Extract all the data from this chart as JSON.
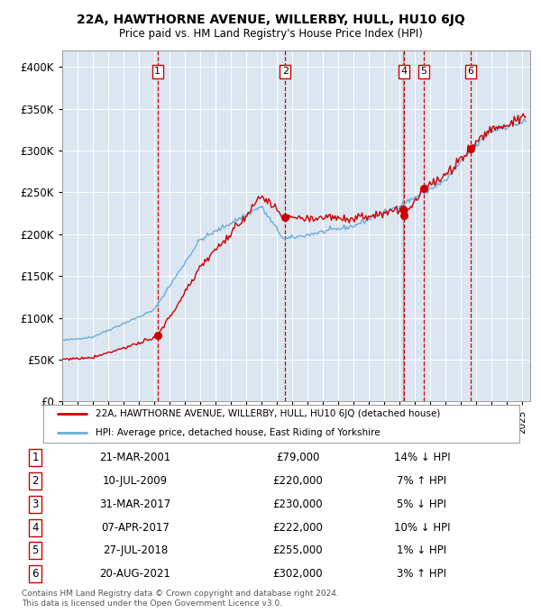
{
  "title": "22A, HAWTHORNE AVENUE, WILLERBY, HULL, HU10 6JQ",
  "subtitle": "Price paid vs. HM Land Registry's House Price Index (HPI)",
  "sales": [
    {
      "num": 1,
      "date": "2001-03-21",
      "price": 79000,
      "pct": "14%",
      "dir": "↓"
    },
    {
      "num": 2,
      "date": "2009-07-10",
      "price": 220000,
      "pct": "7%",
      "dir": "↑"
    },
    {
      "num": 3,
      "date": "2017-03-31",
      "price": 230000,
      "pct": "5%",
      "dir": "↓"
    },
    {
      "num": 4,
      "date": "2017-04-07",
      "price": 222000,
      "pct": "10%",
      "dir": "↓"
    },
    {
      "num": 5,
      "date": "2018-07-27",
      "price": 255000,
      "pct": "1%",
      "dir": "↓"
    },
    {
      "num": 6,
      "date": "2021-08-20",
      "price": 302000,
      "pct": "3%",
      "dir": "↑"
    }
  ],
  "legend_entries": [
    "22A, HAWTHORNE AVENUE, WILLERBY, HULL, HU10 6JQ (detached house)",
    "HPI: Average price, detached house, East Riding of Yorkshire"
  ],
  "table_rows": [
    {
      "num": 1,
      "date": "21-MAR-2001",
      "price": "£79,000",
      "rel": "14% ↓ HPI"
    },
    {
      "num": 2,
      "date": "10-JUL-2009",
      "price": "£220,000",
      "rel": "7% ↑ HPI"
    },
    {
      "num": 3,
      "date": "31-MAR-2017",
      "price": "£230,000",
      "rel": "5% ↓ HPI"
    },
    {
      "num": 4,
      "date": "07-APR-2017",
      "price": "£222,000",
      "rel": "10% ↓ HPI"
    },
    {
      "num": 5,
      "date": "27-JUL-2018",
      "price": "£255,000",
      "rel": "1% ↓ HPI"
    },
    {
      "num": 6,
      "date": "20-AUG-2021",
      "price": "£302,000",
      "rel": "3% ↑ HPI"
    }
  ],
  "footer": "Contains HM Land Registry data © Crown copyright and database right 2024.\nThis data is licensed under the Open Government Licence v3.0.",
  "hpi_color": "#6baed6",
  "price_color": "#cc0000",
  "sale_dot_color": "#cc0000",
  "vline_color_red": "#cc0000",
  "vline_color_blue": "#6baed6",
  "bg_color": "#dce6f1",
  "grid_color": "#ffffff",
  "ylim": [
    0,
    420000
  ],
  "yticks": [
    0,
    50000,
    100000,
    150000,
    200000,
    250000,
    300000,
    350000,
    400000
  ],
  "xlim_start": 1995.0,
  "xlim_end": 2025.5
}
